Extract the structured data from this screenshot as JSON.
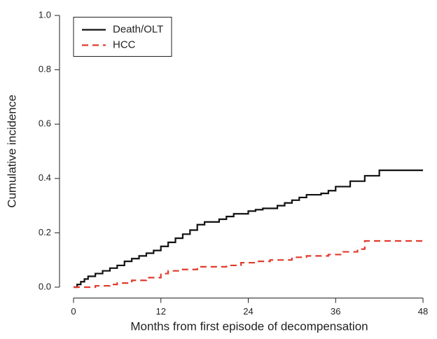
{
  "chart_data": {
    "type": "step",
    "xlabel": "Months from first episode of decompensation",
    "ylabel": "Cumulative incidence",
    "xlim": [
      -1.92,
      49.92
    ],
    "ylim": [
      -0.04,
      1.04
    ],
    "xticks": [
      0,
      12,
      24,
      36,
      48
    ],
    "yticks": [
      {
        "value": 0,
        "label": "0.0"
      },
      0.2,
      0.4,
      0.6,
      0.8,
      {
        "value": 1,
        "label": "1.0"
      }
    ],
    "legend": "upper left",
    "series": [
      {
        "name": "Death/OLT",
        "color": "#111111",
        "linestyle": "solid",
        "x": [
          0,
          0.5,
          1,
          1.5,
          2,
          3,
          4,
          5,
          6,
          7,
          8,
          9,
          10,
          11,
          12,
          13,
          14,
          15,
          16,
          17,
          18,
          20,
          21,
          22,
          24,
          25,
          26,
          28,
          29,
          30,
          31,
          32,
          34,
          35,
          36,
          38,
          40,
          42,
          48
        ],
        "values": [
          0,
          0.01,
          0.02,
          0.03,
          0.04,
          0.05,
          0.06,
          0.07,
          0.08,
          0.095,
          0.105,
          0.115,
          0.125,
          0.135,
          0.15,
          0.165,
          0.18,
          0.195,
          0.21,
          0.23,
          0.24,
          0.25,
          0.26,
          0.27,
          0.28,
          0.285,
          0.29,
          0.3,
          0.31,
          0.32,
          0.33,
          0.34,
          0.345,
          0.355,
          0.37,
          0.39,
          0.41,
          0.43,
          0.43
        ]
      },
      {
        "name": "HCC",
        "color": "#e23a2c",
        "linestyle": "dashed",
        "x": [
          0,
          3,
          5,
          6,
          8,
          10,
          12,
          13,
          15,
          17,
          21,
          23,
          25,
          27,
          30,
          32,
          35,
          37,
          39,
          40,
          48
        ],
        "values": [
          0,
          0.005,
          0.01,
          0.015,
          0.025,
          0.035,
          0.05,
          0.06,
          0.065,
          0.075,
          0.08,
          0.09,
          0.095,
          0.1,
          0.11,
          0.115,
          0.12,
          0.13,
          0.14,
          0.17,
          0.17
        ]
      }
    ]
  }
}
